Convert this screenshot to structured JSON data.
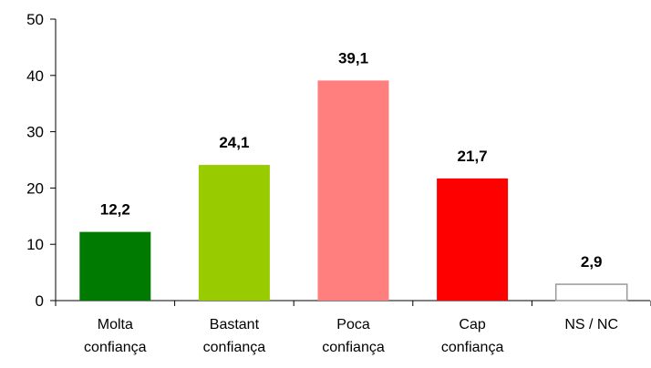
{
  "chart_data": {
    "type": "bar",
    "categories": [
      [
        "Molta",
        "confiança"
      ],
      [
        "Bastant",
        "confiança"
      ],
      [
        "Poca",
        "confiança"
      ],
      [
        "Cap",
        "confiança"
      ],
      [
        "NS / NC"
      ]
    ],
    "values": [
      12.2,
      24.1,
      39.1,
      21.7,
      2.9
    ],
    "value_labels": [
      "12,2",
      "24,1",
      "39,1",
      "21,7",
      "2,9"
    ],
    "bar_colors": [
      "#007A00",
      "#99CC00",
      "#FF7F7F",
      "#FF0000",
      "#FFFFFF"
    ],
    "bar_stroke": "#999999",
    "yticks": [
      0,
      10,
      20,
      30,
      40,
      50
    ],
    "ylim": [
      0,
      50
    ],
    "title": "",
    "xlabel": "",
    "ylabel": "",
    "grid": false,
    "legend": false
  }
}
